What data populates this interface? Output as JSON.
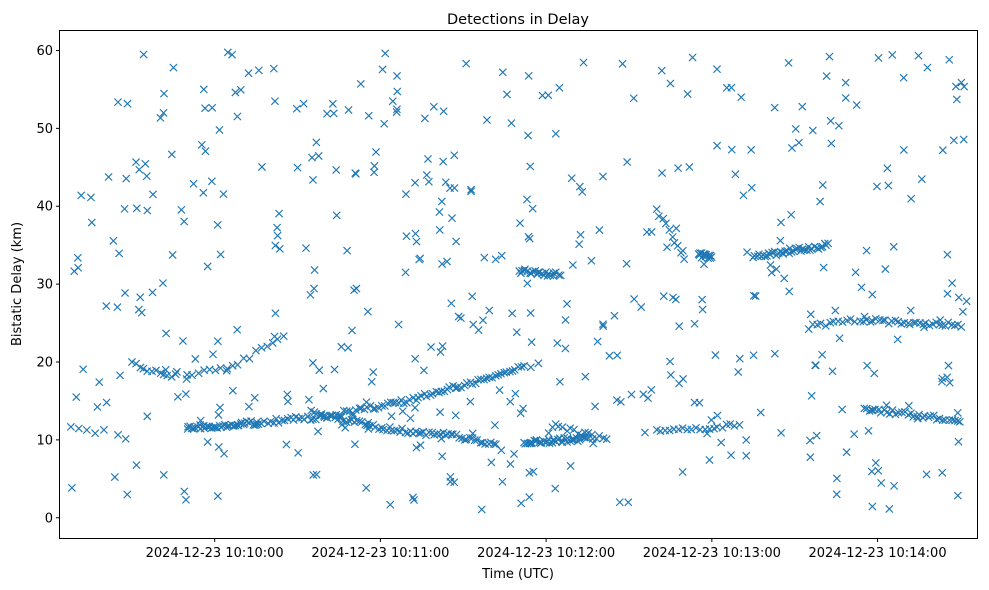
{
  "chart_data": {
    "type": "scatter",
    "title": "Detections in Delay",
    "xlabel": "Time (UTC)",
    "ylabel": "Bistatic Delay (km)",
    "x_ticks": [
      "2024-12-23 10:10:00",
      "2024-12-23 10:11:00",
      "2024-12-23 10:12:00",
      "2024-12-23 10:13:00",
      "2024-12-23 10:14:00"
    ],
    "y_ticks": [
      "0",
      "10",
      "20",
      "30",
      "40",
      "50",
      "60"
    ],
    "xlim": [
      "2024-12-23 10:09:04",
      "2024-12-23 10:14:36"
    ],
    "ylim": [
      -2.6,
      62.5
    ],
    "grid": false,
    "marker": "x",
    "marker_color": "#1f77b4",
    "tracks": [
      {
        "label": "track",
        "x": [
          "2024-12-23 10:09:08",
          "2024-12-23 10:09:20"
        ],
        "y": [
          11.5,
          11.0
        ],
        "n": 5
      },
      {
        "label": "track",
        "x": [
          "2024-12-23 10:09:30",
          "2024-12-23 10:09:40",
          "2024-12-23 10:09:46"
        ],
        "y": [
          19.8,
          18.6,
          18.2
        ],
        "n": 12
      },
      {
        "label": "track",
        "x": [
          "2024-12-23 10:09:50",
          "2024-12-23 10:10:15"
        ],
        "y": [
          11.5,
          12.2
        ],
        "n": 40
      },
      {
        "label": "track",
        "x": [
          "2024-12-23 10:09:50",
          "2024-12-23 10:10:08",
          "2024-12-23 10:10:25"
        ],
        "y": [
          18.2,
          19.6,
          23.6
        ],
        "n": 18
      },
      {
        "label": "track",
        "x": [
          "2024-12-23 10:10:15",
          "2024-12-23 10:10:40",
          "2024-12-23 10:11:10",
          "2024-12-23 10:11:35",
          "2024-12-23 10:11:52"
        ],
        "y": [
          12.2,
          13.0,
          15.0,
          17.6,
          19.5
        ],
        "n": 95
      },
      {
        "label": "track",
        "x": [
          "2024-12-23 10:10:35",
          "2024-12-23 10:11:00",
          "2024-12-23 10:11:25",
          "2024-12-23 10:11:42"
        ],
        "y": [
          13.5,
          11.5,
          10.6,
          9.4
        ],
        "n": 70
      },
      {
        "label": "track",
        "x": [
          "2024-12-23 10:11:52",
          "2024-12-23 10:12:15"
        ],
        "y": [
          9.6,
          10.2
        ],
        "n": 40
      },
      {
        "label": "track",
        "x": [
          "2024-12-23 10:11:50",
          "2024-12-23 10:12:05"
        ],
        "y": [
          31.7,
          31.2
        ],
        "n": 24
      },
      {
        "label": "track",
        "x": [
          "2024-12-23 10:12:02",
          "2024-12-23 10:12:22"
        ],
        "y": [
          11.9,
          10.0
        ],
        "n": 16
      },
      {
        "label": "track",
        "x": [
          "2024-12-23 10:12:40",
          "2024-12-23 10:12:50"
        ],
        "y": [
          39.5,
          33.5
        ],
        "n": 10
      },
      {
        "label": "track",
        "x": [
          "2024-12-23 10:12:55",
          "2024-12-23 10:13:00"
        ],
        "y": [
          33.8,
          33.3
        ],
        "n": 14
      },
      {
        "label": "track",
        "x": [
          "2024-12-23 10:12:40",
          "2024-12-23 10:13:10"
        ],
        "y": [
          11.0,
          11.9
        ],
        "n": 20
      },
      {
        "label": "track",
        "x": [
          "2024-12-23 10:13:15",
          "2024-12-23 10:13:42"
        ],
        "y": [
          33.5,
          35.0
        ],
        "n": 40
      },
      {
        "label": "track",
        "x": [
          "2024-12-23 10:13:35",
          "2024-12-23 10:13:55"
        ],
        "y": [
          24.5,
          25.6
        ],
        "n": 14
      },
      {
        "label": "track",
        "x": [
          "2024-12-23 10:13:55",
          "2024-12-23 10:14:15",
          "2024-12-23 10:14:30"
        ],
        "y": [
          25.4,
          25.0,
          24.7
        ],
        "n": 32
      },
      {
        "label": "track",
        "x": [
          "2024-12-23 10:13:55",
          "2024-12-23 10:14:30"
        ],
        "y": [
          14.0,
          12.5
        ],
        "n": 34
      }
    ],
    "clutter_count": 470
  }
}
